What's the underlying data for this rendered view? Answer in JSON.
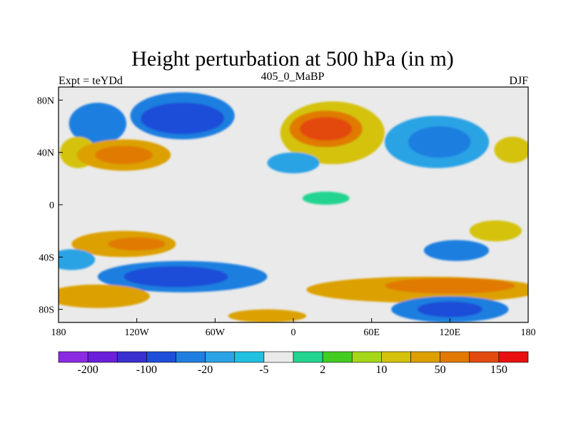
{
  "chart_data": {
    "type": "heatmap",
    "title": "Height perturbation at 500 hPa (in m)",
    "left_label": "Expt = teYDd",
    "center_label": "405_0_MaBP",
    "right_label": "DJF",
    "x_ticks": [
      {
        "value": -180,
        "label": "180"
      },
      {
        "value": -120,
        "label": "120W"
      },
      {
        "value": -60,
        "label": "60W"
      },
      {
        "value": 0,
        "label": "0"
      },
      {
        "value": 60,
        "label": "60E"
      },
      {
        "value": 120,
        "label": "120E"
      },
      {
        "value": 180,
        "label": "180"
      }
    ],
    "y_ticks": [
      {
        "value": 80,
        "label": "80N"
      },
      {
        "value": 40,
        "label": "40N"
      },
      {
        "value": 0,
        "label": "0"
      },
      {
        "value": -40,
        "label": "40S"
      },
      {
        "value": -80,
        "label": "80S"
      }
    ],
    "xlim": [
      -180,
      180
    ],
    "ylim": [
      -90,
      90
    ],
    "colorbar": {
      "colors": [
        "#8a2be2",
        "#6a1fd8",
        "#3a2fcf",
        "#1f4ed8",
        "#1f7fe0",
        "#29a3e5",
        "#20c0e0",
        "#eaeaea",
        "#22d490",
        "#44cc22",
        "#a6d71a",
        "#d4c20c",
        "#dca000",
        "#e07a00",
        "#e34a10",
        "#e81010"
      ],
      "labels": [
        {
          "boundary": 1,
          "text": "-200"
        },
        {
          "boundary": 3,
          "text": "-100"
        },
        {
          "boundary": 5,
          "text": "-20"
        },
        {
          "boundary": 7,
          "text": "-5"
        },
        {
          "boundary": 9,
          "text": "2"
        },
        {
          "boundary": 11,
          "text": "10"
        },
        {
          "boundary": 13,
          "text": "50"
        },
        {
          "boundary": 15,
          "text": "150"
        }
      ]
    },
    "field_background": "#eaeaea",
    "anomalies": [
      {
        "lon": -150,
        "lat": 62,
        "rlon": 22,
        "rlat": 16,
        "level": 4
      },
      {
        "lon": -85,
        "lat": 68,
        "rlon": 40,
        "rlat": 18,
        "level": 4
      },
      {
        "lon": -85,
        "lat": 66,
        "rlon": 32,
        "rlat": 12,
        "level": 3
      },
      {
        "lon": -165,
        "lat": 40,
        "rlon": 14,
        "rlat": 12,
        "level": 11
      },
      {
        "lon": -130,
        "lat": 38,
        "rlon": 36,
        "rlat": 12,
        "level": 12
      },
      {
        "lon": -130,
        "lat": 38,
        "rlon": 22,
        "rlat": 7,
        "level": 13
      },
      {
        "lon": 30,
        "lat": 55,
        "rlon": 40,
        "rlat": 24,
        "level": 11
      },
      {
        "lon": 25,
        "lat": 58,
        "rlon": 28,
        "rlat": 14,
        "level": 13
      },
      {
        "lon": 25,
        "lat": 58,
        "rlon": 20,
        "rlat": 9,
        "level": 14
      },
      {
        "lon": 110,
        "lat": 48,
        "rlon": 40,
        "rlat": 20,
        "level": 5
      },
      {
        "lon": 112,
        "lat": 48,
        "rlon": 24,
        "rlat": 12,
        "level": 4
      },
      {
        "lon": 168,
        "lat": 42,
        "rlon": 14,
        "rlat": 10,
        "level": 11
      },
      {
        "lon": 0,
        "lat": 32,
        "rlon": 20,
        "rlat": 8,
        "level": 5
      },
      {
        "lon": -130,
        "lat": -30,
        "rlon": 40,
        "rlat": 10,
        "level": 12
      },
      {
        "lon": -120,
        "lat": -30,
        "rlon": 22,
        "rlat": 5,
        "level": 13
      },
      {
        "lon": -170,
        "lat": -42,
        "rlon": 18,
        "rlat": 8,
        "level": 5
      },
      {
        "lon": -85,
        "lat": -55,
        "rlon": 65,
        "rlat": 12,
        "level": 4
      },
      {
        "lon": -90,
        "lat": -55,
        "rlon": 40,
        "rlat": 8,
        "level": 3
      },
      {
        "lon": -150,
        "lat": -70,
        "rlon": 40,
        "rlat": 9,
        "level": 12
      },
      {
        "lon": 100,
        "lat": -65,
        "rlon": 90,
        "rlat": 10,
        "level": 12
      },
      {
        "lon": 120,
        "lat": -62,
        "rlon": 50,
        "rlat": 6,
        "level": 13
      },
      {
        "lon": 120,
        "lat": -80,
        "rlon": 45,
        "rlat": 10,
        "level": 4
      },
      {
        "lon": 120,
        "lat": -80,
        "rlon": 25,
        "rlat": 6,
        "level": 3
      },
      {
        "lon": 125,
        "lat": -35,
        "rlon": 25,
        "rlat": 8,
        "level": 4
      },
      {
        "lon": 155,
        "lat": -20,
        "rlon": 20,
        "rlat": 8,
        "level": 11
      },
      {
        "lon": -20,
        "lat": -85,
        "rlon": 30,
        "rlat": 5,
        "level": 12
      },
      {
        "lon": 25,
        "lat": 5,
        "rlon": 18,
        "rlat": 5,
        "level": 8
      }
    ]
  }
}
